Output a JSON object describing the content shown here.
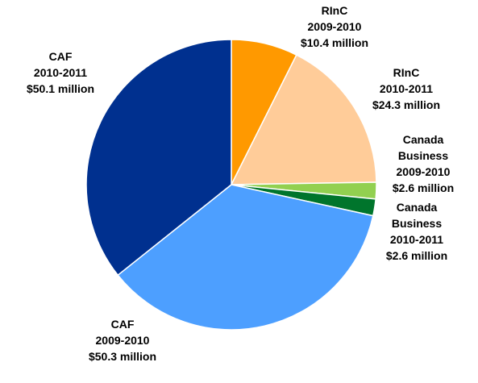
{
  "chart_data": {
    "type": "pie",
    "title": "",
    "start_angle_deg": 90,
    "direction": "clockwise",
    "slices": [
      {
        "label": [
          "RInC",
          "2009-2010",
          "$10.4 million"
        ],
        "value": 10.4,
        "color": "#ff9900"
      },
      {
        "label": [
          "RInC",
          "2010-2011",
          "$24.3 million"
        ],
        "value": 24.3,
        "color": "#ffcc99"
      },
      {
        "label": [
          "Canada",
          "Business",
          "2009-2010",
          "$2.6 million"
        ],
        "value": 2.6,
        "color": "#92d050"
      },
      {
        "label": [
          "Canada",
          "Business",
          "2010-2011",
          "$2.6 million"
        ],
        "value": 2.6,
        "color": "#00752c"
      },
      {
        "label": [
          "CAF",
          "2009-2010",
          "$50.3 million"
        ],
        "value": 50.3,
        "color": "#4d9fff"
      },
      {
        "label": [
          "CAF",
          "2010-2011",
          "$50.1 million"
        ],
        "value": 50.1,
        "color": "#00308f"
      }
    ]
  }
}
